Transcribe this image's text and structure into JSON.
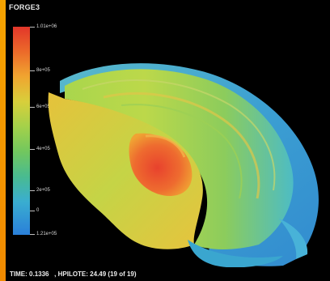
{
  "app": {
    "title": "FORGE3"
  },
  "legend": {
    "ticks": [
      "1.01e+06",
      "8e+05",
      "6e+05",
      "4e+05",
      "2e+05",
      "0",
      "1.21e+05"
    ]
  },
  "status": {
    "time_label": "TIME:",
    "time_value": "0.1336",
    "hpilote_label": ", HPILOTE:",
    "hpilote_value": "24.49 (19 of 19)"
  },
  "colors": {
    "accent_strip": "#f5a300",
    "background": "#000000",
    "max": "#e2362a",
    "min": "#2a7fd9"
  }
}
